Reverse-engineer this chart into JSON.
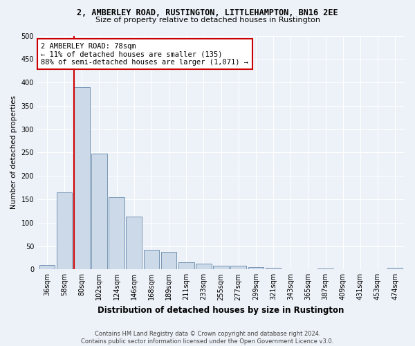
{
  "title1": "2, AMBERLEY ROAD, RUSTINGTON, LITTLEHAMPTON, BN16 2EE",
  "title2": "Size of property relative to detached houses in Rustington",
  "xlabel": "Distribution of detached houses by size in Rustington",
  "ylabel": "Number of detached properties",
  "footer": "Contains HM Land Registry data © Crown copyright and database right 2024.\nContains public sector information licensed under the Open Government Licence v3.0.",
  "categories": [
    "36sqm",
    "58sqm",
    "80sqm",
    "102sqm",
    "124sqm",
    "146sqm",
    "168sqm",
    "189sqm",
    "211sqm",
    "233sqm",
    "255sqm",
    "277sqm",
    "299sqm",
    "321sqm",
    "343sqm",
    "365sqm",
    "387sqm",
    "409sqm",
    "431sqm",
    "453sqm",
    "474sqm"
  ],
  "values": [
    10,
    165,
    390,
    248,
    155,
    113,
    42,
    38,
    15,
    12,
    8,
    8,
    5,
    3,
    0,
    0,
    2,
    0,
    0,
    0,
    3
  ],
  "bar_color": "#ccd9e8",
  "bar_edge_color": "#6688aa",
  "red_line_index": 2,
  "annotation_line1": "2 AMBERLEY ROAD: 78sqm",
  "annotation_line2": "← 11% of detached houses are smaller (135)",
  "annotation_line3": "88% of semi-detached houses are larger (1,071) →",
  "annotation_box_color": "#ffffff",
  "annotation_box_edge": "#cc0000",
  "background_color": "#edf2f8",
  "grid_color": "#ffffff",
  "ylim": [
    0,
    500
  ],
  "yticks": [
    0,
    50,
    100,
    150,
    200,
    250,
    300,
    350,
    400,
    450,
    500
  ],
  "title1_fontsize": 8.5,
  "title2_fontsize": 8.0,
  "xlabel_fontsize": 8.5,
  "ylabel_fontsize": 7.5,
  "tick_fontsize": 7.0,
  "annotation_fontsize": 7.5,
  "footer_fontsize": 6.0
}
